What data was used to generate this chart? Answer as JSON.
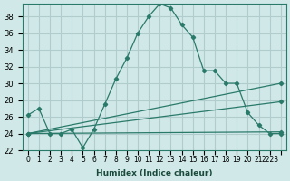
{
  "xlabel": "Humidex (Indice chaleur)",
  "ylabel": "",
  "bg_color": "#d0e8e8",
  "grid_color": "#b0cccc",
  "line_color": "#2a7a6a",
  "xlim": [
    -0.5,
    23.5
  ],
  "ylim": [
    22,
    39.5
  ],
  "yticks": [
    22,
    24,
    26,
    28,
    30,
    32,
    34,
    36,
    38
  ],
  "xticks": [
    0,
    1,
    2,
    3,
    4,
    5,
    6,
    7,
    8,
    9,
    10,
    11,
    12,
    13,
    14,
    15,
    16,
    17,
    18,
    19,
    20,
    21,
    22,
    23
  ],
  "xtick_labels": [
    "0",
    "1",
    "2",
    "3",
    "4",
    "5",
    "6",
    "7",
    "8",
    "9",
    "10",
    "11",
    "12",
    "13",
    "14",
    "15",
    "16",
    "17",
    "18",
    "19",
    "20",
    "21",
    "2223",
    ""
  ],
  "main_x": [
    0,
    1,
    2,
    3,
    4,
    5,
    6,
    7,
    8,
    9,
    10,
    11,
    12,
    13,
    14,
    15,
    16,
    17,
    18,
    19,
    20,
    21,
    22,
    23
  ],
  "main_y": [
    26.2,
    27.0,
    24.0,
    24.0,
    24.5,
    22.3,
    24.5,
    27.5,
    30.5,
    33.0,
    36.0,
    38.0,
    39.5,
    39.0,
    37.0,
    35.5,
    31.5,
    31.5,
    30.0,
    30.0,
    26.5,
    25.0,
    24.0,
    24.0
  ],
  "line2_x": [
    0,
    23
  ],
  "line2_y": [
    24.0,
    30.0
  ],
  "line3_x": [
    0,
    23
  ],
  "line3_y": [
    24.0,
    27.8
  ],
  "line4_x": [
    0,
    23
  ],
  "line4_y": [
    24.0,
    24.2
  ]
}
